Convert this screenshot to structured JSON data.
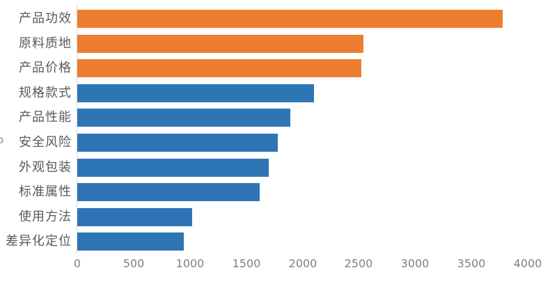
{
  "chart_data": {
    "type": "bar",
    "orientation": "horizontal",
    "title": "",
    "xlabel": "",
    "ylabel": "",
    "categories": [
      "产品功效",
      "原料质地",
      "产品价格",
      "规格款式",
      "产品性能",
      "安全风险",
      "外观包装",
      "标准属性",
      "使用方法",
      "差异化定位"
    ],
    "values": [
      3780,
      2540,
      2520,
      2100,
      1890,
      1780,
      1700,
      1620,
      1020,
      945
    ],
    "bar_colors": [
      "#ED7D31",
      "#ED7D31",
      "#ED7D31",
      "#2E75B6",
      "#2E75B6",
      "#2E75B6",
      "#2E75B6",
      "#2E75B6",
      "#2E75B6",
      "#2E75B6"
    ],
    "xlim": [
      0,
      4000
    ],
    "x_ticks": [
      "0",
      "500",
      "1000",
      "1500",
      "2000",
      "2500",
      "3000",
      "3500",
      "4000"
    ],
    "grid": false,
    "legend": false,
    "axis_line_color": "#D9D9D9",
    "category_label_color": "#595959",
    "tick_label_color": "#808080",
    "clipped_edge_text": "o"
  }
}
